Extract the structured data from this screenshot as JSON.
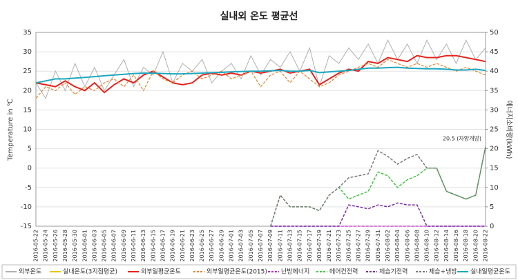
{
  "chart_data": {
    "type": "line",
    "title": "실내외 온도 평균선",
    "y_label": "Temperature in ℃",
    "y2_label": "에너지소비량(kWh)",
    "annotation": "20.5 (자양개방)",
    "categories": [
      "2016-05-22",
      "2016-05-24",
      "2016-05-26",
      "2016-05-28",
      "2016-05-30",
      "2016-06-01",
      "2016-06-03",
      "2016-06-05",
      "2016-06-07",
      "2016-06-09",
      "2016-06-11",
      "2016-06-13",
      "2016-06-15",
      "2016-06-17",
      "2016-06-19",
      "2016-06-21",
      "2016-06-23",
      "2016-06-25",
      "2016-06-27",
      "2016-06-29",
      "2016-07-01",
      "2016-07-03",
      "2016-07-05",
      "2016-07-07",
      "2016-07-09",
      "2016-07-11",
      "2016-07-13",
      "2016-07-15",
      "2016-07-17",
      "2016-07-19",
      "2016-07-21",
      "2016-07-23",
      "2016-07-25",
      "2016-07-27",
      "2016-07-29",
      "2016-07-31",
      "2016-08-02",
      "2016-08-04",
      "2016-08-06",
      "2016-08-08",
      "2016-08-10",
      "2016-08-12",
      "2016-08-14",
      "2016-08-16",
      "2016-08-18",
      "2016-08-20",
      "2016-08-22"
    ],
    "ylim": [
      -15,
      35
    ],
    "yticks": [
      -15,
      -10,
      -5,
      0,
      5,
      10,
      15,
      20,
      25,
      30,
      35
    ],
    "y2lim": [
      0,
      50
    ],
    "y2ticks": [
      0,
      5,
      10,
      15,
      20,
      25,
      30,
      35,
      40,
      45,
      50
    ],
    "grid": true,
    "series": [
      {
        "name": "외부온도",
        "color": "#b0b0b0",
        "width": 1,
        "dash": false,
        "values": [
          22,
          18,
          25,
          20,
          27,
          21,
          26,
          20,
          24,
          28,
          21,
          26,
          24,
          30,
          22,
          27,
          25,
          28,
          22,
          25,
          27,
          23,
          29,
          24,
          28,
          26,
          30,
          25,
          31,
          21,
          29,
          27,
          31,
          28,
          32,
          27,
          33,
          28,
          32,
          27,
          33,
          28,
          32,
          27,
          33,
          28,
          31
        ]
      },
      {
        "name": "실내온도(3지점평균)",
        "color": "#e6c619",
        "width": 1.5,
        "dash": false,
        "values": [
          22,
          22.5,
          23,
          23,
          23.2,
          23.4,
          23.6,
          23.8,
          24,
          24.2,
          24.4,
          24.5,
          24.5,
          24.4,
          24.3,
          24.3,
          24.4,
          24.5,
          24.6,
          24.7,
          24.8,
          24.9,
          25,
          25,
          25.1,
          25.2,
          25,
          25,
          25.2,
          24.6,
          24.8,
          25,
          25.2,
          25.5,
          25.8,
          25.8,
          25.9,
          26,
          25.8,
          25.7,
          25.6,
          25.6,
          25.5,
          25.3,
          25.3,
          25.5,
          25.2
        ]
      },
      {
        "name": "외부일평균온도",
        "color": "#e8201a",
        "width": 2,
        "dash": false,
        "values": [
          22,
          21.5,
          21,
          22.5,
          21,
          20,
          22,
          19.5,
          21.5,
          23,
          22,
          24,
          25,
          23.5,
          22,
          21.5,
          22,
          24,
          24.5,
          24,
          24.5,
          24,
          25,
          24.5,
          25,
          25.5,
          24.5,
          25,
          25.5,
          21.5,
          23,
          24.5,
          25.5,
          25,
          27.5,
          27,
          28.5,
          28,
          27.5,
          29,
          28.5,
          28.5,
          29,
          29,
          28.5,
          28,
          27.5
        ]
      },
      {
        "name": "외부일평균온도(2015)",
        "color": "#e8822a",
        "width": 1.2,
        "dash": true,
        "values": [
          18,
          21,
          20,
          22,
          19,
          21,
          20,
          22,
          23,
          21,
          24,
          20,
          25,
          23,
          22,
          24,
          25,
          23,
          24,
          25,
          23,
          24,
          25,
          21,
          24,
          25,
          22,
          25,
          23,
          21,
          22,
          24,
          25,
          26,
          27,
          26,
          28,
          27,
          26,
          27,
          26,
          27,
          26,
          25,
          26,
          25,
          24
        ]
      },
      {
        "name": "난방에너지",
        "color": "#d020d0",
        "width": 1.2,
        "dash": true,
        "axis": "y2",
        "values": [
          null,
          null,
          null,
          null,
          null,
          null,
          null,
          null,
          null,
          null,
          null,
          null,
          null,
          null,
          null,
          null,
          null,
          null,
          null,
          null,
          null,
          null,
          null,
          null,
          0,
          0,
          0,
          0,
          0,
          0,
          0,
          0,
          0,
          0,
          0,
          0,
          0,
          0,
          0,
          0,
          0,
          0,
          0,
          0,
          0,
          0,
          0
        ]
      },
      {
        "name": "에어컨전력",
        "color": "#3cc83c",
        "width": 1.5,
        "dash": true,
        "axis": "y2",
        "values": [
          null,
          null,
          null,
          null,
          null,
          null,
          null,
          null,
          null,
          null,
          null,
          null,
          null,
          null,
          null,
          null,
          null,
          null,
          null,
          null,
          null,
          null,
          null,
          null,
          0,
          8,
          5,
          5,
          5,
          4,
          8,
          10,
          7,
          8,
          9,
          14,
          13,
          10,
          12,
          13,
          15,
          15,
          9,
          8,
          7,
          8,
          20.5
        ]
      },
      {
        "name": "제습기전력",
        "color": "#7a2aa8",
        "width": 1.5,
        "dash": true,
        "axis": "y2",
        "values": [
          null,
          null,
          null,
          null,
          null,
          null,
          null,
          null,
          null,
          null,
          null,
          null,
          null,
          null,
          null,
          null,
          null,
          null,
          null,
          null,
          null,
          null,
          null,
          null,
          0,
          0,
          0,
          0,
          0,
          0,
          0,
          0,
          5.5,
          5,
          4.5,
          5.5,
          5,
          6,
          5.5,
          5.5,
          0,
          0,
          0,
          0,
          0,
          0,
          0
        ]
      },
      {
        "name": "제습+냉방",
        "color": "#7a7a7a",
        "width": 1.5,
        "dash": true,
        "axis": "y2",
        "values": [
          null,
          null,
          null,
          null,
          null,
          null,
          null,
          null,
          null,
          null,
          null,
          null,
          null,
          null,
          null,
          null,
          null,
          null,
          null,
          null,
          null,
          null,
          null,
          null,
          0,
          8,
          5,
          5,
          5,
          4,
          8,
          10,
          12.5,
          13,
          13.5,
          19.5,
          18,
          16,
          17.5,
          18.5,
          15,
          15,
          9,
          8,
          7,
          8,
          20.5
        ]
      },
      {
        "name": "실내일평균온도",
        "color": "#1aa8c0",
        "width": 2,
        "dash": false,
        "values": [
          22,
          22.5,
          23,
          23,
          23.2,
          23.4,
          23.6,
          23.8,
          24,
          24.2,
          24.4,
          24.5,
          24.5,
          24.4,
          24.3,
          24.3,
          24.4,
          24.5,
          24.6,
          24.7,
          24.8,
          24.9,
          25,
          25,
          25.1,
          25.2,
          25,
          25,
          25.2,
          24.6,
          24.8,
          25,
          25.2,
          25.5,
          25.8,
          25.8,
          25.9,
          26,
          25.8,
          25.7,
          25.6,
          25.6,
          25.5,
          25.3,
          25.3,
          25.5,
          25.2
        ]
      }
    ]
  }
}
